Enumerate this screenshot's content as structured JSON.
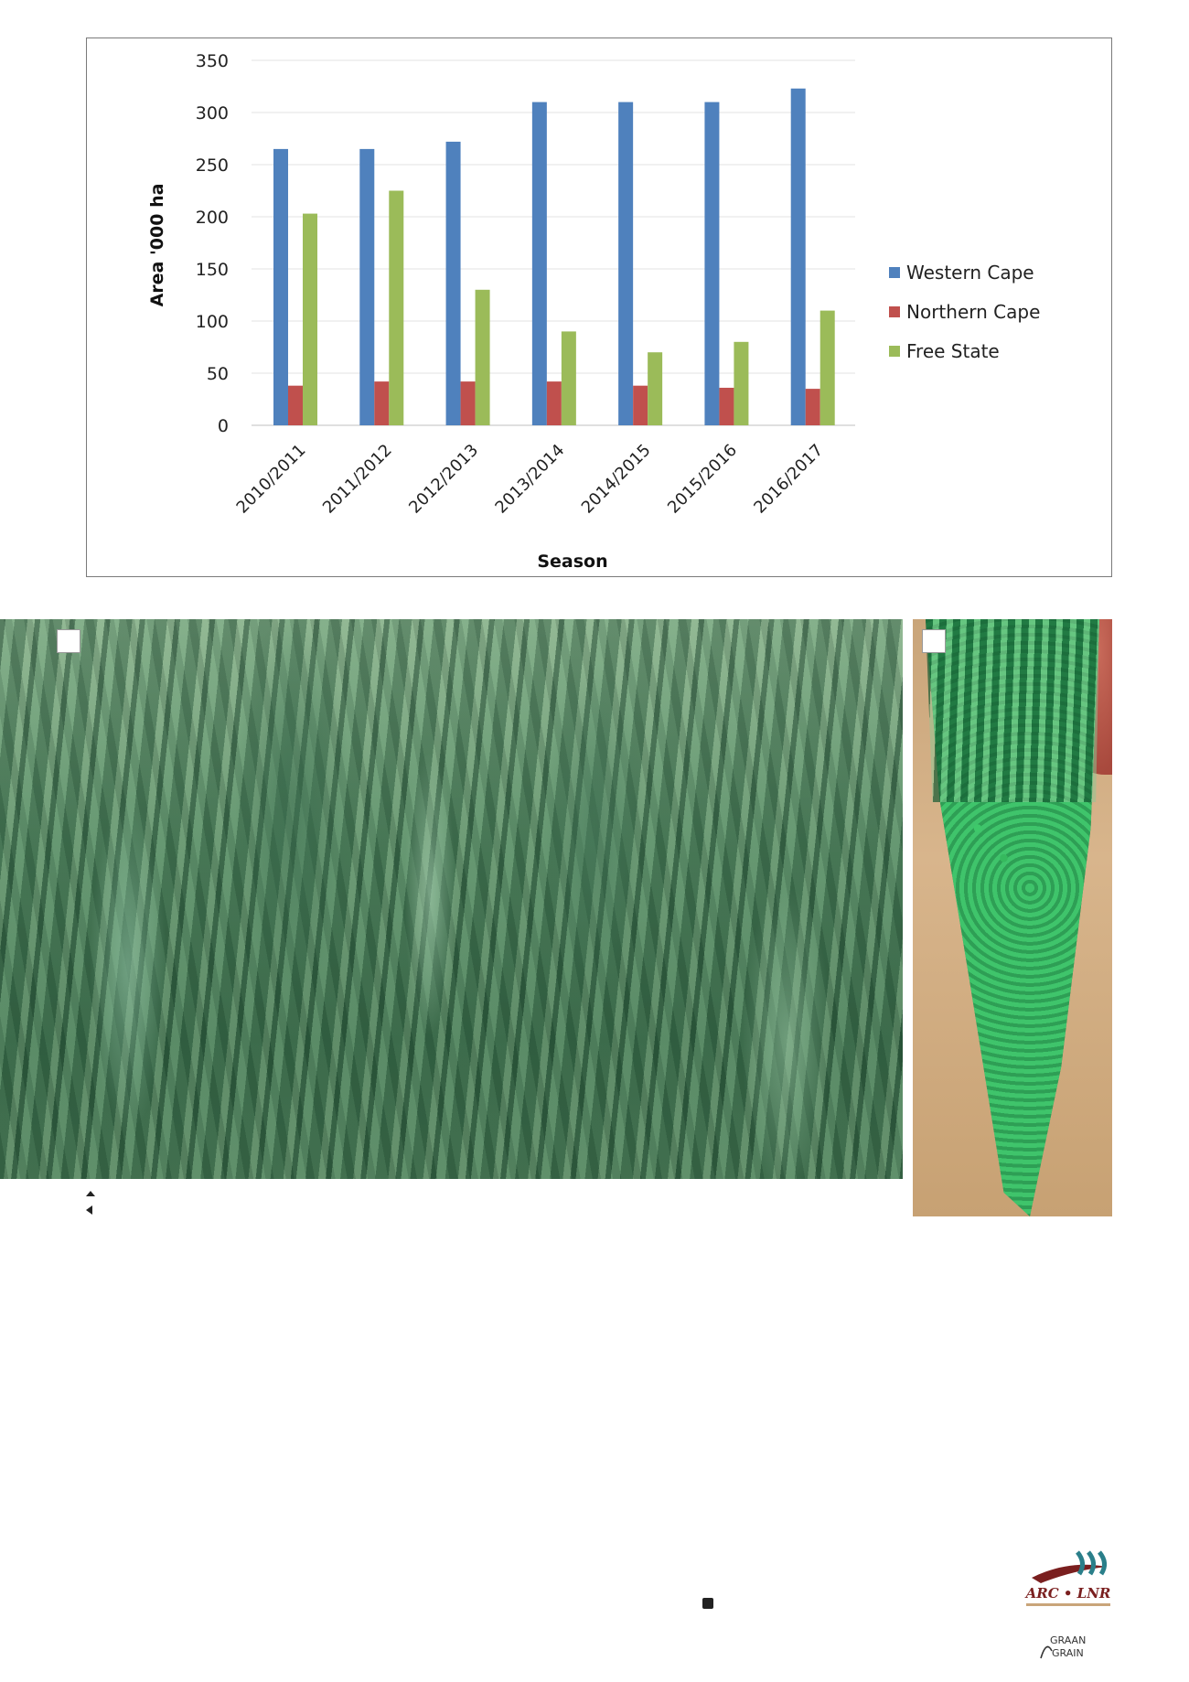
{
  "chart_data": {
    "type": "bar",
    "categories": [
      "2010/2011",
      "2011/2012",
      "2012/2013",
      "2013/2014",
      "2014/2015",
      "2015/2016",
      "2016/2017"
    ],
    "series": [
      {
        "name": "Western Cape",
        "color": "#4f81bd",
        "values": [
          265,
          265,
          272,
          310,
          310,
          310,
          323
        ]
      },
      {
        "name": "Northern Cape",
        "color": "#c0504d",
        "values": [
          38,
          42,
          42,
          42,
          38,
          36,
          35
        ]
      },
      {
        "name": "Free State",
        "color": "#9bbb59",
        "values": [
          203,
          225,
          130,
          90,
          70,
          80,
          110
        ]
      }
    ],
    "title": "",
    "xlabel": "Season",
    "ylabel": "Area '000 ha",
    "ylim": [
      0,
      350
    ],
    "yticks": [
      0,
      50,
      100,
      150,
      200,
      250,
      300,
      350
    ],
    "grid": true,
    "legend_position": "right"
  },
  "logos": {
    "arc": "ARC • LNR",
    "grain_top": "GRAAN",
    "grain_bottom": "GRAIN"
  }
}
